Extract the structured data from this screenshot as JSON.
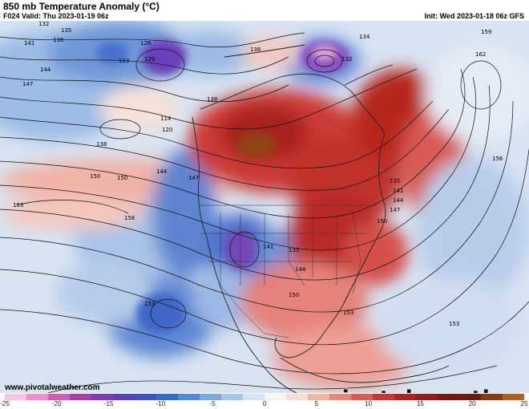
{
  "header": {
    "title": "850 mb Temperature Anomaly (°C)",
    "valid": "F024 Valid: Thu 2023-01-19 06z",
    "init": "Init: Wed 2023-01-18 06z GFS"
  },
  "footer": {
    "website": "www.pivotalweather.com",
    "brand": "pivotal weather"
  },
  "colorbar": {
    "tick_labels": [
      "-25",
      "-20",
      "-15",
      "-10",
      "-5",
      "0",
      "5",
      "10",
      "15",
      "20",
      "25"
    ],
    "colors": [
      "#f7c2e6",
      "#ef8ed0",
      "#d25bb8",
      "#a83ea6",
      "#7d3bb0",
      "#5b3fbf",
      "#3e52c4",
      "#2f6ccc",
      "#4b8ad6",
      "#78a9e0",
      "#a6c6ea",
      "#d3e3f3",
      "#f6f6f6",
      "#f7dcd4",
      "#f2b6a6",
      "#e9877a",
      "#dc5a55",
      "#cc3434",
      "#b31f20",
      "#961a17",
      "#7a1712",
      "#6a1c10",
      "#8a3a12",
      "#b0601a"
    ]
  },
  "contour_labels": [
    "132",
    "135",
    "138",
    "141",
    "144",
    "147",
    "150",
    "153",
    "156",
    "159",
    "162",
    "123",
    "120",
    "114",
    "126",
    "129",
    "136",
    "134"
  ],
  "map_icons": [
    "state-borders",
    "coastlines",
    "height-contours"
  ]
}
